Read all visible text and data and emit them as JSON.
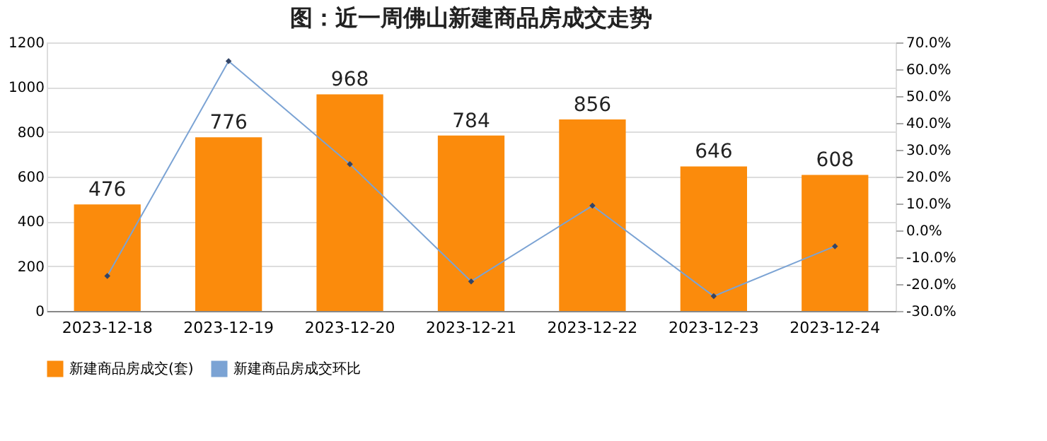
{
  "chart_data": {
    "type": "bar",
    "title": "图：近一周佛山新建商品房成交走势",
    "categories": [
      "2023-12-18",
      "2023-12-19",
      "2023-12-20",
      "2023-12-21",
      "2023-12-22",
      "2023-12-23",
      "2023-12-24"
    ],
    "series": [
      {
        "name": "新建商品房成交(套)",
        "color": "#fb8b0c",
        "values": [
          476,
          776,
          968,
          784,
          856,
          646,
          608
        ],
        "value_labels": [
          "476",
          "776",
          "968",
          "784",
          "856",
          "646",
          "608"
        ]
      },
      {
        "name": "新建商品房成交环比",
        "type": "line",
        "axis": "y2",
        "color": "#7ba3d4",
        "marker": "diamond",
        "values": [
          -17.0,
          63.0,
          24.7,
          -19.0,
          9.2,
          -24.5,
          -5.9
        ]
      }
    ],
    "ylim": [
      0,
      1200
    ],
    "yticks": [
      0,
      200,
      400,
      600,
      800,
      1000,
      1200
    ],
    "y2lim": [
      -30,
      70
    ],
    "y2ticks": [
      {
        "value": -30,
        "label": "-30.0%"
      },
      {
        "value": -20,
        "label": "-20.0%"
      },
      {
        "value": -10,
        "label": "-10.0%"
      },
      {
        "value": 0,
        "label": "0.0%"
      },
      {
        "value": 10,
        "label": "10.0%"
      },
      {
        "value": 20,
        "label": "20.0%"
      },
      {
        "value": 30,
        "label": "30.0%"
      },
      {
        "value": 40,
        "label": "40.0%"
      },
      {
        "value": 50,
        "label": "50.0%"
      },
      {
        "value": 60,
        "label": "60.0%"
      },
      {
        "value": 70,
        "label": "70.0%"
      }
    ],
    "grid": "y",
    "legend": "bottom"
  }
}
